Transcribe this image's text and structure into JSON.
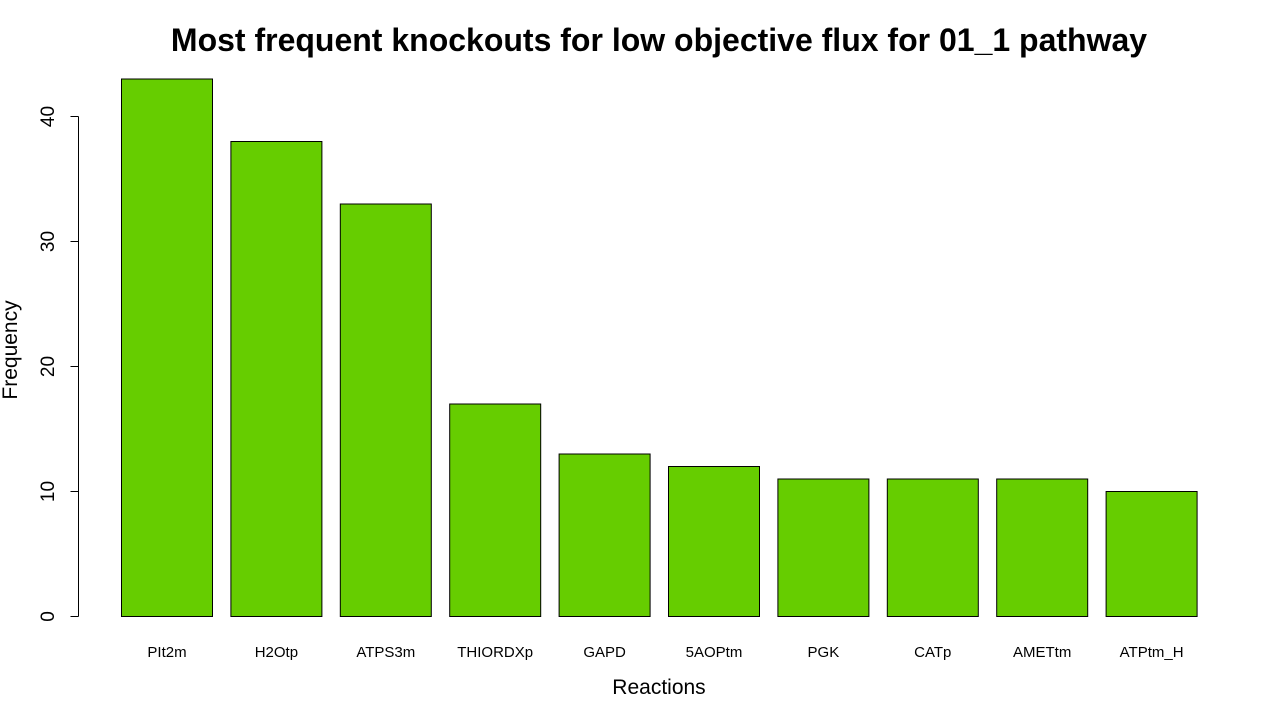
{
  "chart_data": {
    "type": "bar",
    "title": "Most frequent knockouts for low objective flux for 01_1 pathway",
    "xlabel": "Reactions",
    "ylabel": "Frequency",
    "categories": [
      "PIt2m",
      "H2Otp",
      "ATPS3m",
      "THIORDXp",
      "GAPD",
      "5AOPtm",
      "PGK",
      "CATp",
      "AMETtm",
      "ATPtm_H"
    ],
    "values": [
      43,
      38,
      33,
      17,
      13,
      12,
      11,
      11,
      11,
      10
    ],
    "yticks": [
      "0",
      "10",
      "20",
      "30",
      "40"
    ],
    "ylim": [
      0,
      43
    ],
    "bar_color": "#66CD00",
    "grid": false,
    "legend": "none"
  }
}
